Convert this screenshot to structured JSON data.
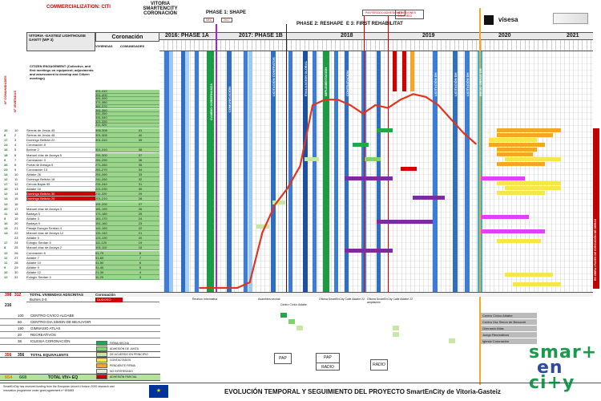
{
  "header": {
    "commercialization": "COMMERCIALIZATION: CITI",
    "project": "VITORIA SMARTENCITY CORONACIÓN",
    "phase1": "PHASE 1: SHAPE",
    "phase2": "PHASE 2: RESHAPE",
    "phase3": "E 3: FIRST REHABILITAT",
    "tag_dec": "DEC",
    "tag_2017": "2017",
    "note_plan": "PIA PERIODO ADHESIONES",
    "note_ads": "ADHESIONES SOLO RED",
    "visesa": "visesa",
    "left_title": "VITORIA -GASTEIZ LIGHTHOUSE GANTT (WP 3)",
    "left_sub": "Coronación",
    "phase_a": "2016: PHASE 1A",
    "phase_b": "2017: PHASE 1B"
  },
  "years": [
    "2018",
    "2019",
    "2020",
    "2021"
  ],
  "col_headers": {
    "viviendas": "VIVIENDAS",
    "comunidades": "COMUNIDADES",
    "n_viviendas": "Nº VIVIENDAS",
    "n_comunidades": "Nº COMUNIDADES"
  },
  "citizen_text": "CITIZEN ENGAGEMENT (Collective, and first meetings on equipment; adjustments and assessment to develop and Citizen meetings)",
  "vertical_labels": [
    "CAMBIO GOBERNANZA",
    "COMUNICACIÓN",
    "LICITACION CONTRATOS",
    "EVALUACION GLOBAL",
    "IMPLEMENTACION",
    "CONTRATACION",
    "LICITACIÓN DH",
    "LICITACIÓN DH",
    "LICITACIÓN DH",
    "INICIO OBRAS DH"
  ],
  "rows": [
    {
      "n": "10",
      "m": "10",
      "name": "Sierras de Jesús 45",
      "viv": "306-308",
      "com": "41"
    },
    {
      "n": "8",
      "m": "2",
      "name": "Sierras de Jesús 48",
      "viv": "301-305",
      "com": "40"
    },
    {
      "n": "17",
      "m": "3",
      "name": "Domingo Beltrán 22",
      "viv": "301-310",
      "com": "39"
    },
    {
      "n": "24",
      "m": "4",
      "name": "Coronación 8",
      "viv": "",
      "com": ""
    },
    {
      "n": "16",
      "m": "5",
      "name": "Bolívar 2",
      "viv": "301-310",
      "com": "38"
    },
    {
      "n": "18",
      "m": "6",
      "name": "Manuel díaz de Arcaya 5",
      "viv": "291-300",
      "com": "37"
    },
    {
      "n": "9",
      "m": "7",
      "name": "Coronación 3",
      "viv": "281-290",
      "com": "36"
    },
    {
      "n": "26",
      "m": "8",
      "name": "Portal de Arriaga 5",
      "viv": "271-280",
      "com": "35"
    },
    {
      "n": "23",
      "m": "9",
      "name": "Coronación 13",
      "viv": "261-270",
      "com": "34"
    },
    {
      "n": "14",
      "m": "10",
      "name": "Aldabe 26",
      "viv": "251-260",
      "com": "33"
    },
    {
      "n": "12",
      "m": "11",
      "name": "Domingo Beltrán 18",
      "viv": "241-250",
      "com": "32"
    },
    {
      "n": "17",
      "m": "12",
      "name": "Cercas Bajas 55",
      "viv": "231-240",
      "com": "31"
    },
    {
      "n": "10",
      "m": "13",
      "name": "Aldabe 16",
      "viv": "221-230",
      "com": "30"
    },
    {
      "n": "12",
      "m": "14",
      "name": "Domingo Beltrán 30",
      "viv": "211-220",
      "com": "29"
    },
    {
      "n": "14",
      "m": "15",
      "name": "Domingo Beltrán 20",
      "viv": "201-210",
      "com": "28"
    },
    {
      "n": "14",
      "m": "16",
      "name": "",
      "viv": "191-200",
      "com": "27"
    },
    {
      "n": "20",
      "m": "17",
      "name": "Manuel díaz de Arcaya 3",
      "viv": "181-190",
      "com": "26"
    },
    {
      "n": "11",
      "m": "18",
      "name": "Badaya 5",
      "viv": "171-180",
      "com": "25"
    },
    {
      "n": "9",
      "m": "19",
      "name": "Aldabe 3",
      "viv": "161-170",
      "com": "24"
    },
    {
      "n": "10",
      "m": "20",
      "name": "Badaya 9",
      "viv": "151-160",
      "com": "23"
    },
    {
      "n": "14",
      "m": "21",
      "name": "Pasaje Eulogio Serdan 4",
      "viv": "141-150",
      "com": "22"
    },
    {
      "n": "14",
      "m": "22",
      "name": "Manuel díaz de Arcaya 12",
      "viv": "131-140",
      "com": "21"
    },
    {
      "n": "",
      "m": "23",
      "name": "Aldabe 5",
      "viv": "121-130",
      "com": "20"
    },
    {
      "n": "17",
      "m": "24",
      "name": "Eulogio Serdan 5",
      "viv": "111-120",
      "com": "19"
    },
    {
      "n": "8",
      "m": "25",
      "name": "Manuel díaz de Arcaya 2",
      "viv": "101-110",
      "com": "18"
    },
    {
      "n": "12",
      "m": "26",
      "name": "Coronación 6",
      "viv": "61-70",
      "com": "8"
    },
    {
      "n": "11",
      "m": "27",
      "name": "Aldabe 7",
      "viv": "51-60",
      "com": "7"
    },
    {
      "n": "11",
      "m": "28",
      "name": "Aldabe 10",
      "viv": "41-50",
      "com": "6"
    },
    {
      "n": "9",
      "m": "29",
      "name": "Aldabe 9",
      "viv": "31-40",
      "com": "5"
    },
    {
      "n": "10",
      "m": "30",
      "name": "Aldabe 12",
      "viv": "21-30",
      "com": "4"
    },
    {
      "n": "12",
      "m": "31",
      "name": "Eulogio Serdan 4",
      "viv": "11-20",
      "com": "3"
    }
  ],
  "upper_ranges": [
    "401-410",
    "391-400",
    "381-390",
    "371-380",
    "361-370",
    "351-360",
    "341-350",
    "331-340",
    "321-330",
    "311-320"
  ],
  "totals": {
    "viv_total": "398",
    "com_total": "312",
    "label": "TOTAL VIVIENDAS ADSCRITAS",
    "sub": "Coronación"
  },
  "extra_row": {
    "label": "Bulnes 3-5",
    "status": "DUDOSO"
  },
  "n216": "216",
  "facilities": [
    {
      "n": "100",
      "name": "CENTRO CIVICO ALDABE"
    },
    {
      "n": "60",
      "name": "CENTRO DIA SIMON DE BEAUVOIR"
    },
    {
      "n": "190",
      "name": "GIMNASIO ATLAS"
    },
    {
      "n": "20",
      "name": "RECREATIVOS"
    },
    {
      "n": "36",
      "name": "IGLESIA CORONACIÓN"
    }
  ],
  "facility_right": [
    "Centro Cívico Aldabe",
    "Centro Día Simon de Beauvoir",
    "Gimnasio Atlas",
    "Juego Recreativos",
    "Iglesia Coronación"
  ],
  "equivalents": {
    "a": "356",
    "b": "356",
    "label": "TOTAL EQUIVALENTS"
  },
  "viv_eq": {
    "a": "654",
    "b": "668",
    "label": "TOTAL VIV+ EQ"
  },
  "legend": [
    {
      "color": "#22a84a",
      "label": "FIRMA HECHA"
    },
    {
      "color": "#7fd36a",
      "label": "ADHESIÓN DE JUNTA"
    },
    {
      "color": "#c8e6a4",
      "label": "DE ACUERDO EN PRINCIPIO"
    },
    {
      "color": "#f7e64a",
      "label": "CONTACTADOS"
    },
    {
      "color": "#f5a623",
      "label": "PENDIENTE FIRMA"
    },
    {
      "color": "#e6e6e6",
      "label": "NO INTERESADO"
    },
    {
      "color": "#c00000",
      "label": "ADHESIÓN PARCIAL"
    }
  ],
  "pap_labels": [
    "PAP",
    "PAP",
    "RADIO",
    "RADIO"
  ],
  "timeline_labels": [
    "Reunión informativa",
    "Asamblea vecinal",
    "Centro Cívico Aldabe",
    "Oficina SmartEnCity Calle Aldabe 22",
    "Oficina SmartEnCity Calle Aldabe 22 ampliación"
  ],
  "footer": {
    "disclaimer": "SmartEnCity has received funding from the European Union's Horizon 2020 research and innovation programme under grant agreement nº 691883",
    "main_title": "EVOLUCIÓN TEMPORAL Y SEGUIMIENTO DEL PROYECTO SmartEnCity de Vitoria-Gasteiz",
    "brand": [
      "smar+",
      "en",
      "ci+y"
    ]
  },
  "right_vertical": "EN OBRA / FASES DE EJECUCIÓN DE OBRAS",
  "chart_data": {
    "type": "line",
    "title": "EVOLUCIÓN TEMPORAL Y SEGUIMIENTO DEL PROYECTO SmartEnCity de Vitoria-Gasteiz",
    "xlabel": "",
    "ylabel": "Nº VIVIENDAS",
    "x": [
      "2016-12",
      "2017-03",
      "2017-06",
      "2017-09",
      "2017-11",
      "2018-01",
      "2018-02",
      "2018-03",
      "2018-04",
      "2018-05",
      "2018-06",
      "2018-07",
      "2018-08",
      "2018-09",
      "2018-10",
      "2018-11",
      "2018-12",
      "2019-01",
      "2019-02",
      "2019-03",
      "2019-04",
      "2019-05",
      "2019-06"
    ],
    "series": [
      {
        "values": [
          0,
          0,
          0,
          0,
          10,
          100,
          150,
          180,
          220,
          330,
          340,
          340,
          330,
          315,
          330,
          325,
          340,
          350,
          345,
          330,
          305,
          280,
          260
        ]
      }
    ],
    "ylim": [
      0,
      420
    ]
  }
}
